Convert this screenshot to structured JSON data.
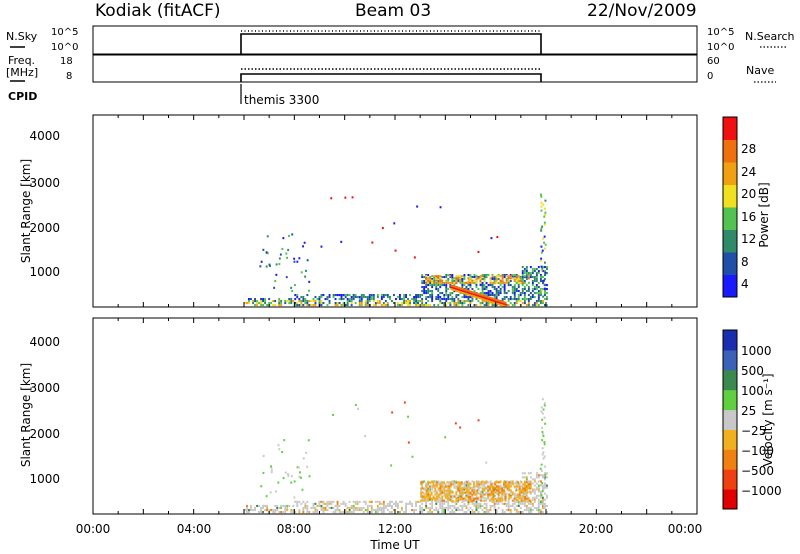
{
  "header": {
    "station": "Kodiak (fitACF)",
    "beam": "Beam 03",
    "date": "22/Nov/2009"
  },
  "top_panels": {
    "nsky_label": "N.Sky",
    "nsky_ticks": [
      "10^5",
      "10^0"
    ],
    "nsearch_label": "N.Search",
    "nsearch_ticks": [
      "10^5",
      "10^0"
    ],
    "freq_label_1": "Freq.",
    "freq_label_2": "[MHz]",
    "freq_ticks": [
      "18",
      "8"
    ],
    "nave_label": "Nave",
    "nave_ticks": [
      "60",
      "0"
    ],
    "cpid_label": "CPID",
    "cpid_value": "themis 3300",
    "operating_window_hours": [
      6.0,
      18.0
    ]
  },
  "colors": {
    "power": [
      "#1a1aff",
      "#1f4fa8",
      "#2f8a6a",
      "#52c252",
      "#f0e020",
      "#f0a010",
      "#f07010",
      "#f01010"
    ],
    "velocity": [
      "#1a2fb0",
      "#3a62b8",
      "#3a8a50",
      "#60d040",
      "#c8c8c8",
      "#f0b020",
      "#f08010",
      "#f04010",
      "#e00000"
    ]
  },
  "chart_data": [
    {
      "type": "heatmap",
      "title": "Power",
      "xlabel": "",
      "ylabel": "Slant Range [km]",
      "xlim": [
        0,
        24
      ],
      "ylim": [
        180,
        4500
      ],
      "yticks": [
        "1000",
        "2000",
        "3000",
        "4000"
      ],
      "colorbar_label": "Power [dB]",
      "colorbar_ticks": [
        "4",
        "8",
        "12",
        "16",
        "20",
        "24",
        "28"
      ],
      "colorbar_range": [
        0,
        32
      ],
      "data_window_hours": [
        6.0,
        18.0
      ]
    },
    {
      "type": "heatmap",
      "title": "Velocity",
      "xlabel": "Time UT",
      "ylabel": "Slant Range [km]",
      "xlim": [
        0,
        24
      ],
      "ylim": [
        180,
        4500
      ],
      "xticks": [
        "00:00",
        "04:00",
        "08:00",
        "12:00",
        "16:00",
        "20:00",
        "00:00"
      ],
      "yticks": [
        "1000",
        "2000",
        "3000",
        "4000"
      ],
      "colorbar_label": "Velocity [m s⁻¹]",
      "colorbar_ticks": [
        "1000",
        "500",
        "100",
        "25",
        "−25",
        "−100",
        "−500",
        "−1000"
      ],
      "data_window_hours": [
        6.0,
        18.0
      ]
    }
  ]
}
